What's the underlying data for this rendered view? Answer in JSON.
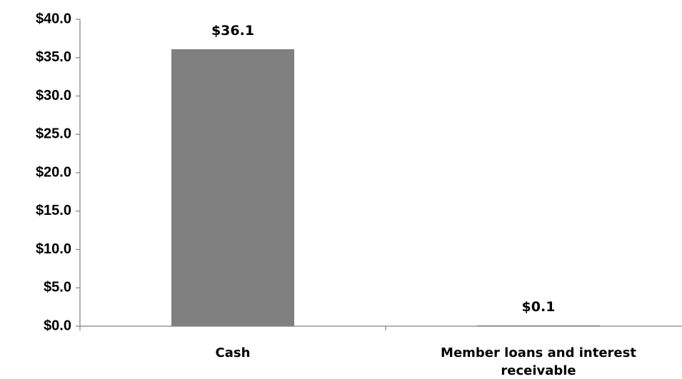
{
  "chart_data": {
    "type": "bar",
    "categories": [
      "Cash",
      "Member loans and interest receivable"
    ],
    "category_lines": [
      [
        "Cash"
      ],
      [
        "Member loans and interest",
        "receivable"
      ]
    ],
    "values": [
      36.1,
      0.1
    ],
    "data_labels": [
      "$36.1",
      "$0.1"
    ],
    "ylim": [
      0,
      40
    ],
    "yticks": [
      0,
      5,
      10,
      15,
      20,
      25,
      30,
      35,
      40
    ],
    "ytick_labels": [
      "$0.0",
      "$5.0",
      "$10.0",
      "$15.0",
      "$20.0",
      "$25.0",
      "$30.0",
      "$35.0",
      "$40.0"
    ],
    "title": "",
    "xlabel": "",
    "ylabel": "",
    "grid": false,
    "legend": "none",
    "bar_color": "#808080",
    "axis_color": "#808080"
  }
}
